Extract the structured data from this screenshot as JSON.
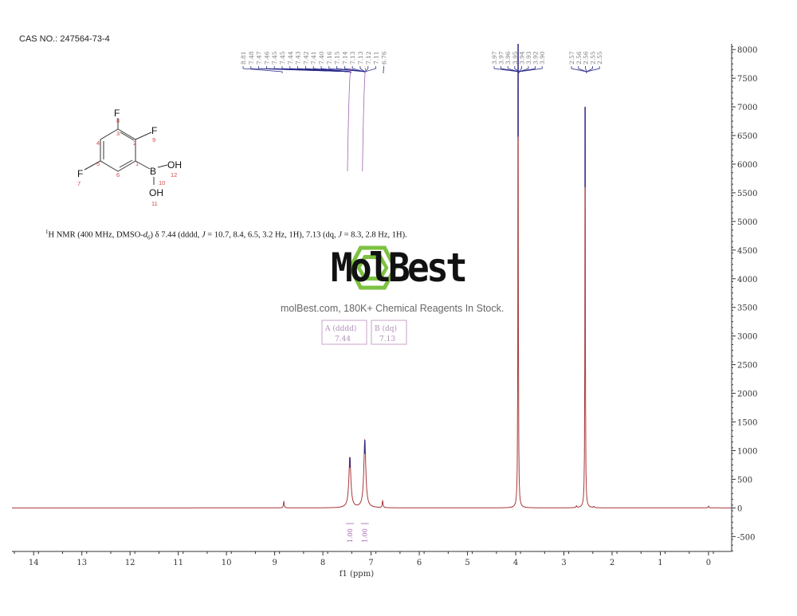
{
  "header": {
    "cas": "CAS NO.: 247564-73-4"
  },
  "structure": {
    "atoms": {
      "F8": "F",
      "F9": "F",
      "F7": "F",
      "B": "B",
      "OH12": "OH",
      "OH11": "OH"
    },
    "numbers": [
      "1",
      "2",
      "3",
      "4",
      "5",
      "6",
      "7",
      "8",
      "9",
      "10",
      "11",
      "12"
    ]
  },
  "description": {
    "sup": "1",
    "part1": "H NMR (400 MHz, DMSO-",
    "d": "d",
    "sub": "6",
    "part2": ") δ 7.44 (dddd, ",
    "j1": "J",
    "part3": " = 10.7, 8.4, 6.5, 3.2 Hz, 1H), 7.13 (dq, ",
    "j2": "J",
    "part4": " = 8.3, 2.8 Hz, 1H)."
  },
  "watermark": {
    "brand": "MolBest",
    "tagline": "molBest.com, 180K+ Chemical Reagents In Stock.",
    "logo_color": "#7dc242"
  },
  "chart_data": {
    "type": "line",
    "title": "",
    "xlabel": "f1 (ppm)",
    "ylabel": "",
    "xlim": [
      14.45,
      -0.48
    ],
    "ylim": [
      -760,
      8100
    ],
    "x_reversed": true,
    "x_ticks": [
      14,
      13,
      12,
      11,
      10,
      9,
      8,
      7,
      6,
      5,
      4,
      3,
      2,
      1,
      0
    ],
    "y_ticks": [
      8000,
      7500,
      7000,
      6500,
      6000,
      5500,
      5000,
      4500,
      4000,
      3500,
      3000,
      2500,
      2000,
      1500,
      1000,
      500,
      0,
      -500
    ],
    "y_axis_position": "right",
    "grid": false,
    "colors": {
      "spectrum": "#a8383a",
      "peak_top": "#2a2a8a",
      "labels": "#2a2a8a",
      "integral": "#a060b0",
      "axis": "#333333"
    },
    "peaks": [
      {
        "ppm": 8.81,
        "intensity": 110
      },
      {
        "ppm": 7.44,
        "intensity": 880
      },
      {
        "ppm": 7.13,
        "intensity": 1180
      },
      {
        "ppm": 6.76,
        "intensity": 120
      },
      {
        "ppm": 3.95,
        "intensity": 8100
      },
      {
        "ppm": 2.74,
        "intensity": 30
      },
      {
        "ppm": 2.56,
        "intensity": 7000
      },
      {
        "ppm": 2.38,
        "intensity": 20
      },
      {
        "ppm": 0.0,
        "intensity": 30
      }
    ],
    "peak_labels_group1": [
      "8.81",
      "7.48",
      "7.47",
      "7.46",
      "7.45",
      "7.45",
      "7.44",
      "7.43",
      "7.42",
      "7.41",
      "7.40",
      "7.16",
      "7.15",
      "7.14",
      "7.13",
      "7.13",
      "7.12",
      "7.11",
      "6.76"
    ],
    "peak_labels_group2": [
      "3.97",
      "3.97",
      "3.96",
      "3.95",
      "3.94",
      "3.93",
      "3.92",
      "3.90"
    ],
    "peak_labels_group3": [
      "2.57",
      "2.56",
      "2.56",
      "2.55",
      "2.55"
    ],
    "integrals": [
      {
        "ppm": 7.44,
        "value": "1.00"
      },
      {
        "ppm": 7.13,
        "value": "1.00"
      }
    ],
    "multiplets": [
      {
        "label": "A (dddd)",
        "shift": "7.44"
      },
      {
        "label": "B (dq)",
        "shift": "7.13"
      }
    ]
  }
}
